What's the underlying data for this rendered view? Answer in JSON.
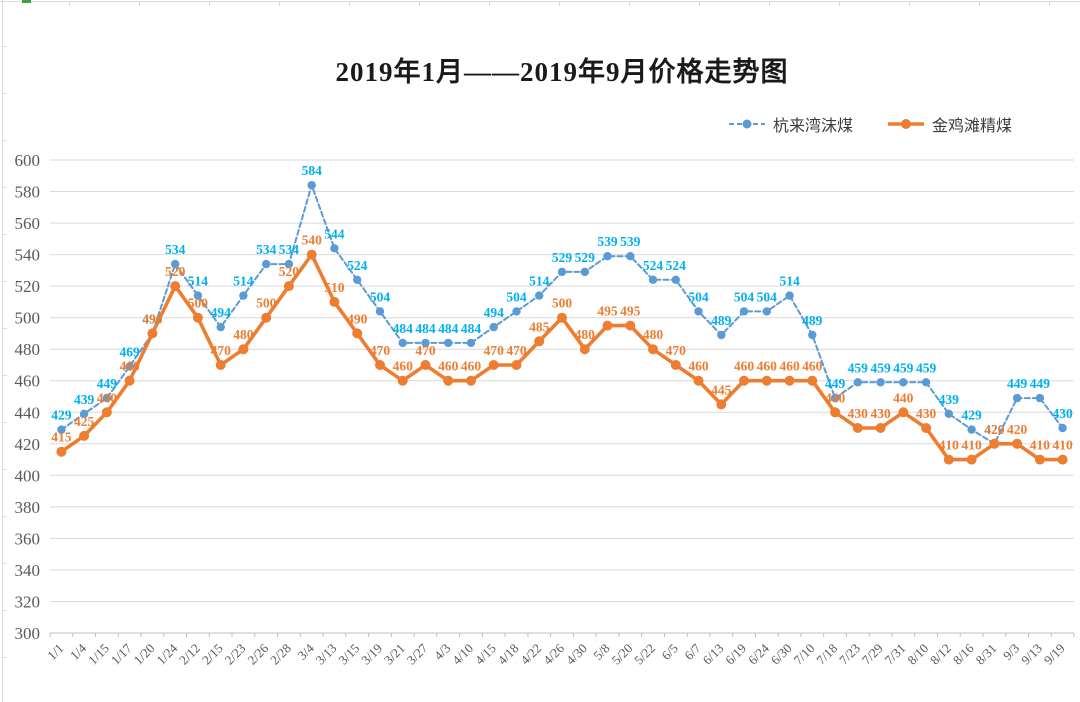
{
  "title": "2019年1月——2019年9月价格走势图",
  "colors": {
    "hanglaiwan_line": "#5B9BD5",
    "hanglaiwan_label": "#00B0F0",
    "jinjitan_line": "#ED7D31",
    "jinjitan_label": "#ED7D31",
    "gridline": "#D9D9D9",
    "axis_line": "#BFBFBF",
    "axis_text": "#595959"
  },
  "chart_data": {
    "type": "line",
    "title": "2019年1月——2019年9月价格走势图",
    "categories": [
      "1/1",
      "1/4",
      "1/15",
      "1/17",
      "1/20",
      "1/24",
      "2/12",
      "2/15",
      "2/23",
      "2/26",
      "2/28",
      "3/4",
      "3/13",
      "3/15",
      "3/19",
      "3/21",
      "3/27",
      "4/3",
      "4/10",
      "4/15",
      "4/18",
      "4/22",
      "4/26",
      "4/30",
      "5/8",
      "5/20",
      "5/22",
      "6/5",
      "6/7",
      "6/13",
      "6/19",
      "6/24",
      "6/30",
      "7/10",
      "7/18",
      "7/23",
      "7/29",
      "7/31",
      "8/10",
      "8/12",
      "8/16",
      "8/31",
      "9/3",
      "9/13",
      "9/19"
    ],
    "series": [
      {
        "name": "杭来湾沫煤",
        "color": "#5B9BD5",
        "label_color": "#00B0F0",
        "dashed": true,
        "values": [
          429,
          439,
          449,
          469,
          490,
          534,
          514,
          494,
          514,
          534,
          534,
          584,
          544,
          524,
          504,
          484,
          484,
          484,
          484,
          494,
          504,
          514,
          529,
          529,
          539,
          539,
          524,
          524,
          504,
          489,
          504,
          504,
          514,
          489,
          449,
          459,
          459,
          459,
          459,
          439,
          429,
          420,
          449,
          449,
          430
        ]
      },
      {
        "name": "金鸡滩精煤",
        "color": "#ED7D31",
        "label_color": "#ED7D31",
        "dashed": false,
        "values": [
          415,
          425,
          440,
          460,
          490,
          520,
          500,
          470,
          480,
          500,
          520,
          540,
          510,
          490,
          470,
          460,
          470,
          460,
          460,
          470,
          470,
          485,
          500,
          480,
          495,
          495,
          480,
          470,
          460,
          445,
          460,
          460,
          460,
          460,
          440,
          430,
          430,
          440,
          430,
          410,
          410,
          420,
          420,
          410,
          410
        ]
      }
    ],
    "ylim": [
      300,
      600
    ],
    "ytick_step": 20,
    "grid": true,
    "data_labels": true,
    "legend_position": "top-right"
  }
}
